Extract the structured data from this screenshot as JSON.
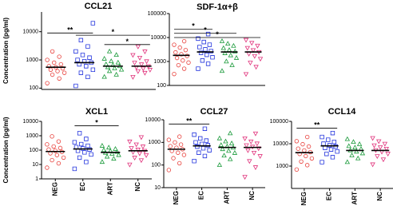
{
  "chart_data": [
    {
      "type": "strip",
      "title": "CCL21",
      "ylabel": "Concentration (pg/ml)",
      "log_scale": true,
      "ylim": [
        90,
        50000
      ],
      "yticks": [
        100,
        1000,
        10000
      ],
      "groups": [
        {
          "color": "#e8413c",
          "marker": "circle",
          "median": 550,
          "values": [
            150,
            220,
            300,
            350,
            400,
            450,
            500,
            550,
            600,
            700,
            800,
            1000,
            1300,
            2000
          ]
        },
        {
          "color": "#2233dd",
          "marker": "square",
          "median": 800,
          "values": [
            120,
            250,
            350,
            450,
            600,
            700,
            800,
            900,
            1000,
            1200,
            1500,
            2000,
            3000,
            5000,
            20000
          ]
        },
        {
          "color": "#1a9a3a",
          "marker": "triangle",
          "median": 600,
          "values": [
            250,
            300,
            400,
            450,
            500,
            550,
            600,
            650,
            700,
            800,
            900,
            1100,
            1500,
            2000
          ]
        },
        {
          "color": "#e0307a",
          "marker": "triangle-down",
          "median": 600,
          "values": [
            250,
            350,
            400,
            450,
            500,
            550,
            600,
            700,
            800,
            900,
            1200,
            1500,
            2000,
            3000
          ]
        }
      ],
      "brackets": [
        {
          "from": 0,
          "to": 1,
          "y": 9000,
          "label": "**"
        },
        {
          "from": 1,
          "to": 3,
          "y": 7500,
          "label": "*"
        },
        {
          "from": 2,
          "to": 3,
          "y": 3500,
          "label": "*"
        }
      ]
    },
    {
      "type": "strip",
      "title": "SDF-1α+β",
      "log_scale": true,
      "ylim": [
        100,
        100000
      ],
      "yticks": [
        100,
        1000,
        10000,
        100000
      ],
      "groups": [
        {
          "color": "#e8413c",
          "marker": "circle",
          "median": 1800,
          "values": [
            300,
            500,
            700,
            900,
            1100,
            1400,
            1700,
            2000,
            2400,
            3000,
            3800,
            5000,
            7000
          ]
        },
        {
          "color": "#2233dd",
          "marker": "square",
          "median": 2500,
          "values": [
            500,
            800,
            1100,
            1500,
            1900,
            2300,
            2700,
            3200,
            4000,
            5000,
            6500,
            9000,
            14000
          ]
        },
        {
          "color": "#1a9a3a",
          "marker": "triangle",
          "median": 2500,
          "values": [
            400,
            700,
            1000,
            1400,
            1800,
            2200,
            2600,
            3000,
            3600,
            4500,
            5500,
            7000
          ]
        },
        {
          "color": "#e0307a",
          "marker": "triangle-down",
          "median": 2500,
          "values": [
            300,
            600,
            900,
            1300,
            1700,
            2100,
            2500,
            3000,
            3700,
            4600,
            6000,
            8000
          ]
        }
      ],
      "brackets": [
        {
          "from": 0,
          "to": 1,
          "y": 22000,
          "label": "*"
        },
        {
          "from": 0,
          "to": 2,
          "y": 15000,
          "label": "*"
        },
        {
          "from": 0,
          "to": 3,
          "y": 10000,
          "label": "*"
        }
      ]
    },
    {
      "type": "strip",
      "title": "XCL1",
      "ylabel": "Concentration (pg/ml)",
      "log_scale": true,
      "ylim": [
        1,
        10000
      ],
      "yticks": [
        1,
        10,
        100,
        1000,
        10000
      ],
      "categories": [
        "NEG",
        "EC",
        "ART",
        "NC"
      ],
      "groups": [
        {
          "color": "#e8413c",
          "marker": "circle",
          "median": 80,
          "values": [
            6,
            12,
            20,
            30,
            45,
            60,
            75,
            90,
            110,
            140,
            180,
            250,
            400,
            900
          ]
        },
        {
          "color": "#2233dd",
          "marker": "square",
          "median": 120,
          "values": [
            5,
            15,
            30,
            50,
            70,
            90,
            110,
            130,
            160,
            200,
            260,
            350,
            600,
            1500
          ]
        },
        {
          "color": "#1a9a3a",
          "marker": "triangle",
          "median": 70,
          "values": [
            15,
            25,
            35,
            45,
            55,
            65,
            75,
            85,
            100,
            120,
            150,
            200
          ]
        },
        {
          "color": "#e0307a",
          "marker": "triangle-down",
          "median": 90,
          "values": [
            10,
            20,
            30,
            45,
            60,
            75,
            90,
            110,
            140,
            180,
            250,
            400,
            800
          ]
        }
      ],
      "brackets": [
        {
          "from": 1,
          "to": 2,
          "y": 5000,
          "label": "*"
        }
      ]
    },
    {
      "type": "strip",
      "title": "CCL27",
      "log_scale": true,
      "ylim": [
        10,
        10000
      ],
      "yticks": [
        10,
        100,
        1000,
        10000
      ],
      "categories": [
        "NEG",
        "EC",
        "ART",
        "NC"
      ],
      "groups": [
        {
          "color": "#e8413c",
          "marker": "circle",
          "median": 500,
          "values": [
            60,
            120,
            200,
            280,
            350,
            420,
            500,
            580,
            680,
            800,
            1000,
            1300,
            1800
          ]
        },
        {
          "color": "#2233dd",
          "marker": "square",
          "median": 700,
          "values": [
            150,
            250,
            350,
            450,
            550,
            650,
            750,
            850,
            1000,
            1200,
            1500,
            2200,
            4000
          ]
        },
        {
          "color": "#1a9a3a",
          "marker": "triangle",
          "median": 600,
          "values": [
            100,
            180,
            260,
            340,
            420,
            500,
            580,
            660,
            760,
            900,
            1100,
            1500,
            2500
          ]
        },
        {
          "color": "#e0307a",
          "marker": "triangle-down",
          "median": 600,
          "values": [
            30,
            80,
            150,
            250,
            350,
            450,
            550,
            650,
            750,
            900,
            1100,
            1500,
            2500
          ]
        }
      ],
      "brackets": [
        {
          "from": 0,
          "to": 1,
          "y": 6500,
          "label": "**"
        }
      ]
    },
    {
      "type": "strip",
      "title": "CCL14",
      "log_scale": true,
      "ylim": [
        100,
        100000
      ],
      "yticks": [
        1000,
        10000,
        100000
      ],
      "categories": [
        "NEG",
        "EC",
        "ART",
        "NC"
      ],
      "groups": [
        {
          "color": "#e8413c",
          "marker": "circle",
          "median": 4000,
          "values": [
            700,
            1100,
            1600,
            2200,
            2800,
            3500,
            4200,
            5000,
            6000,
            7500,
            9500,
            13000,
            20000
          ]
        },
        {
          "color": "#2233dd",
          "marker": "square",
          "median": 8000,
          "values": [
            1500,
            2500,
            3500,
            4500,
            5500,
            6500,
            7500,
            8500,
            10000,
            12000,
            15000,
            20000,
            30000
          ]
        },
        {
          "color": "#1a9a3a",
          "marker": "triangle",
          "median": 5000,
          "values": [
            1500,
            2200,
            3000,
            3700,
            4400,
            5000,
            5800,
            6700,
            7800,
            9500,
            12000,
            16000
          ]
        },
        {
          "color": "#e0307a",
          "marker": "triangle-down",
          "median": 5000,
          "values": [
            1200,
            2000,
            2800,
            3600,
            4400,
            5200,
            6000,
            7000,
            8500,
            10000,
            13000,
            18000
          ]
        }
      ],
      "brackets": [
        {
          "from": 0,
          "to": 1,
          "y": 50000,
          "label": "**"
        }
      ]
    }
  ]
}
